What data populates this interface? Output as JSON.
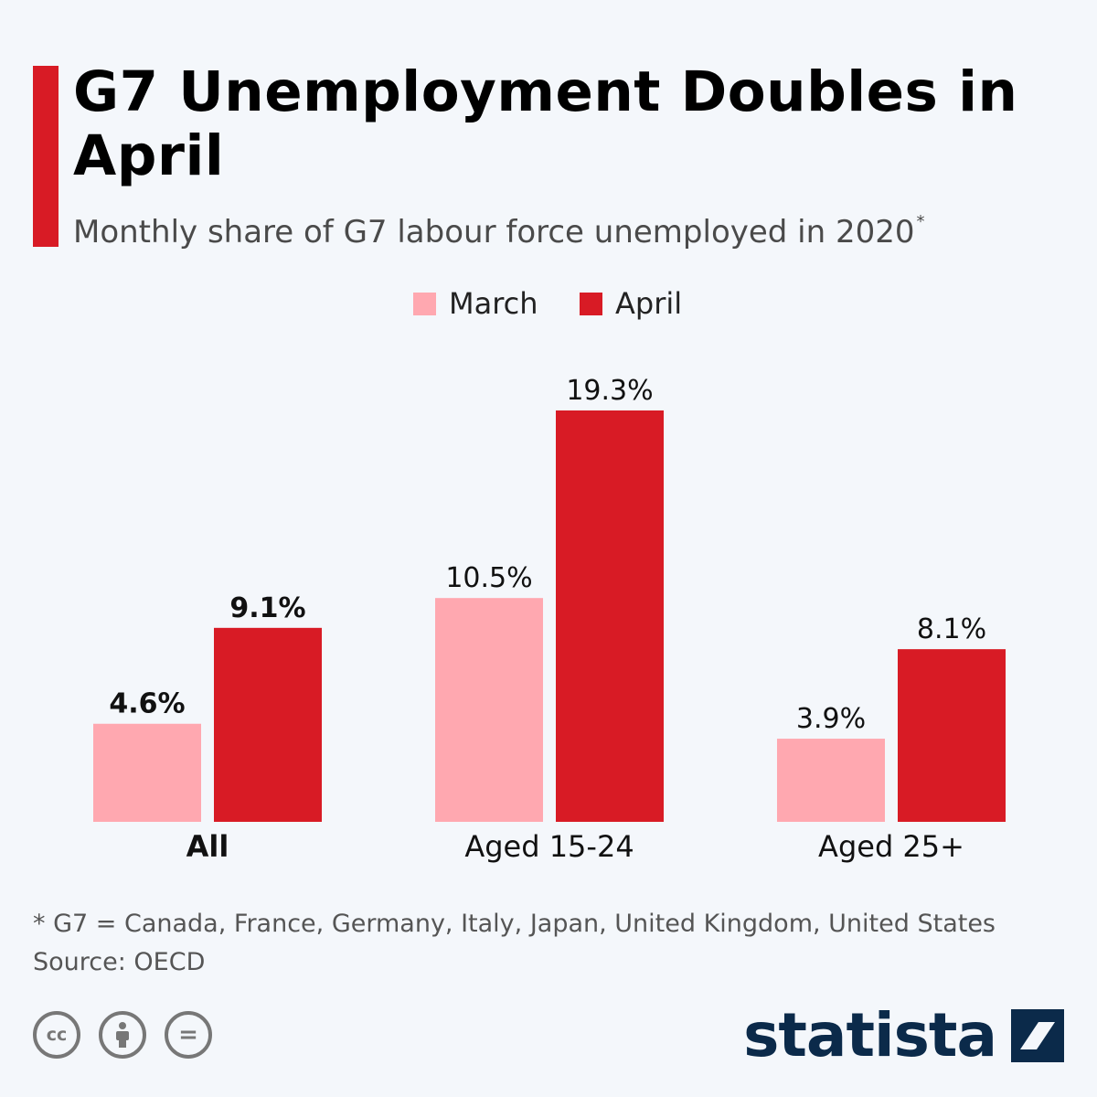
{
  "header": {
    "title": "G7 Unemployment Doubles in April",
    "subtitle": "Monthly share of G7 labour force unemployed in 2020",
    "subtitle_mark": "*"
  },
  "colors": {
    "accent": "#d81b25",
    "march": "#ffa8b0",
    "april": "#d81b25",
    "brand": "#0b2a4a"
  },
  "chart_data": {
    "type": "bar",
    "categories": [
      "All",
      "Aged 15-24",
      "Aged 25+"
    ],
    "series": [
      {
        "name": "March",
        "values": [
          4.6,
          10.5,
          3.9
        ],
        "labels": [
          "4.6%",
          "10.5%",
          "3.9%"
        ],
        "color": "#ffa8b0"
      },
      {
        "name": "April",
        "values": [
          9.1,
          19.3,
          8.1
        ],
        "labels": [
          "9.1%",
          "19.3%",
          "8.1%"
        ],
        "color": "#d81b25"
      }
    ],
    "emphasized_category": "All",
    "legend_position": "top-center",
    "grid": false,
    "ylim": [
      0,
      19.3
    ]
  },
  "footer": {
    "note": "* G7 = Canada, France, Germany, Italy, Japan, United Kingdom, United States",
    "source": "Source: OECD"
  },
  "license_icons": [
    "cc-icon",
    "attribution-icon",
    "no-derivatives-icon"
  ],
  "license_glyphs": {
    "cc": "cc",
    "nd": "="
  },
  "brand": {
    "name": "statista"
  }
}
